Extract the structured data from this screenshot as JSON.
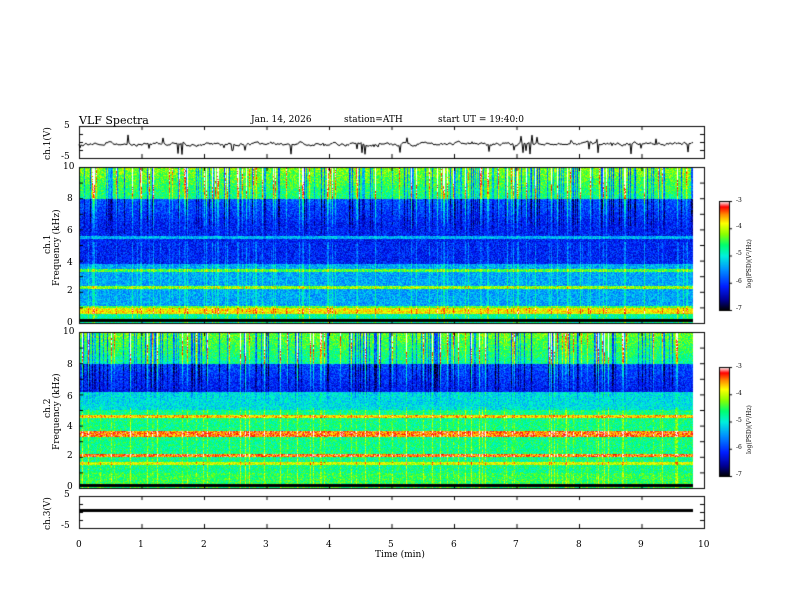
{
  "header": {
    "title": "VLF  Spectra",
    "date": "Jan. 14, 2026",
    "station": "station=ATH",
    "start_ut": "start  UT  =   19:40:0"
  },
  "chart_data": [
    {
      "type": "line",
      "name": "ch1-waveform",
      "ylabel": "ch.1(V)",
      "ylim": [
        -5,
        5
      ],
      "ytick_labels": [
        "5",
        "-5"
      ],
      "xlim": [
        0,
        10
      ],
      "line_color": "#000000"
    },
    {
      "type": "heatmap",
      "name": "ch1-spectrogram",
      "ylabel": "ch.1\nFrequency  (kHz)",
      "ylabel_channel": "ch.1",
      "ylabel_freq": "Frequency  (kHz)",
      "ylim": [
        0,
        10
      ],
      "ytick_labels": [
        "10",
        "8",
        "6",
        "4",
        "2",
        "0"
      ],
      "xlim": [
        0,
        9.8
      ],
      "colorbar": {
        "label": "log(PSD)(V²/Hz)",
        "range": [
          -7,
          -3
        ],
        "tick_labels": [
          "-3",
          "-4",
          "-5",
          "-6",
          "-7"
        ],
        "colors": [
          "#000000",
          "#0000c0",
          "#0070ff",
          "#00e0ff",
          "#00ff80",
          "#a0ff00",
          "#ffff00",
          "#ff8000",
          "#ff0000",
          "#ffffff"
        ]
      }
    },
    {
      "type": "heatmap",
      "name": "ch2-spectrogram",
      "ylabel": "ch.2\nFrequency  (kHz)",
      "ylabel_channel": "ch.2",
      "ylabel_freq": "Frequency  (kHz)",
      "ylim": [
        0,
        10
      ],
      "ytick_labels": [
        "10",
        "8",
        "6",
        "4",
        "2",
        "0"
      ],
      "xlim": [
        0,
        9.8
      ],
      "colorbar": {
        "label": "log(PSD)(V²/Hz)",
        "range": [
          -7,
          -3
        ],
        "tick_labels": [
          "-3",
          "-4",
          "-5",
          "-6",
          "-7"
        ],
        "colors": [
          "#000000",
          "#0000c0",
          "#0070ff",
          "#00e0ff",
          "#00ff80",
          "#a0ff00",
          "#ffff00",
          "#ff8000",
          "#ff0000",
          "#ffffff"
        ]
      }
    },
    {
      "type": "line",
      "name": "ch3-waveform",
      "ylabel": "ch.3(V)",
      "ylim": [
        -5,
        5
      ],
      "ytick_labels": [
        "5",
        "-5"
      ],
      "xlim": [
        0,
        10
      ],
      "line_color": "#000000"
    }
  ],
  "xaxis": {
    "label": "Time  (min)",
    "range": [
      0,
      10
    ],
    "tick_labels": [
      "0",
      "1",
      "2",
      "3",
      "4",
      "5",
      "6",
      "7",
      "8",
      "9",
      "10"
    ]
  }
}
